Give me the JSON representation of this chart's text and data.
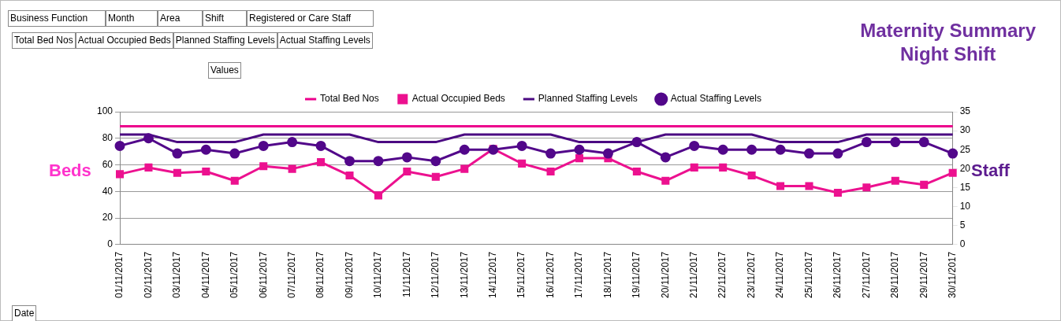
{
  "chart_data": {
    "type": "line",
    "title": "Maternity Summary",
    "subtitle": "Night Shift",
    "ylabel": "Beds",
    "y2label": "Staff",
    "categories": [
      "01/11/2017",
      "02/11/2017",
      "03/11/2017",
      "04/11/2017",
      "05/11/2017",
      "06/11/2017",
      "07/11/2017",
      "08/11/2017",
      "09/11/2017",
      "10/11/2017",
      "11/11/2017",
      "12/11/2017",
      "13/11/2017",
      "14/11/2017",
      "15/11/2017",
      "16/11/2017",
      "17/11/2017",
      "18/11/2017",
      "19/11/2017",
      "20/11/2017",
      "21/11/2017",
      "22/11/2017",
      "23/11/2017",
      "24/11/2017",
      "25/11/2017",
      "26/11/2017",
      "27/11/2017",
      "28/11/2017",
      "29/11/2017",
      "30/11/2017"
    ],
    "series": [
      {
        "name": "Total Bed Nos",
        "color": "#ec008c",
        "marker": "none",
        "values": [
          89,
          89,
          89,
          89,
          89,
          89,
          89,
          89,
          89,
          89,
          89,
          89,
          89,
          89,
          89,
          89,
          89,
          89,
          89,
          89,
          89,
          89,
          89,
          89,
          89,
          89,
          89,
          89,
          89,
          89
        ]
      },
      {
        "name": "Actual Occupied Beds",
        "color": "#ec118f",
        "marker": "square",
        "values": [
          53,
          58,
          54,
          55,
          48,
          59,
          57,
          62,
          52,
          37,
          55,
          51,
          57,
          72,
          61,
          55,
          65,
          65,
          55,
          48,
          58,
          58,
          52,
          44,
          44,
          39,
          43,
          48,
          45,
          54
        ]
      },
      {
        "name": "Planned Staffing Levels",
        "color": "#4b0a82",
        "marker": "none",
        "axis": "y2",
        "values": [
          29,
          29,
          27,
          27,
          27,
          29,
          29,
          29,
          29,
          27,
          27,
          27,
          29,
          29,
          29,
          29,
          27,
          27,
          27,
          29,
          29,
          29,
          29,
          27,
          27,
          27,
          29,
          29,
          29,
          29
        ]
      },
      {
        "name": "Actual Staffing Levels",
        "color": "#52078a",
        "marker": "circle",
        "axis": "y2",
        "values": [
          26,
          28,
          24,
          25,
          24,
          26,
          27,
          26,
          22,
          22,
          23,
          22,
          25,
          25,
          26,
          24,
          25,
          24,
          27,
          23,
          26,
          25,
          25,
          25,
          24,
          24,
          27,
          27,
          27,
          24
        ]
      }
    ],
    "ylim": [
      0,
      100
    ],
    "yticks": [
      0,
      20,
      40,
      60,
      80,
      100
    ],
    "y2lim": [
      0,
      35
    ],
    "y2ticks": [
      0,
      5,
      10,
      15,
      20,
      25,
      30,
      35
    ],
    "grid": "y",
    "legend": "top",
    "line_style": "solid",
    "annotations": [
      "Business Function",
      "Month",
      "Area",
      "Shift",
      "Registered or Care Staff",
      "Total Bed Nos",
      "Actual Occupied Beds",
      "Planned Staffing Levels",
      "Actual Staffing Levels",
      "Values",
      "Date"
    ]
  }
}
